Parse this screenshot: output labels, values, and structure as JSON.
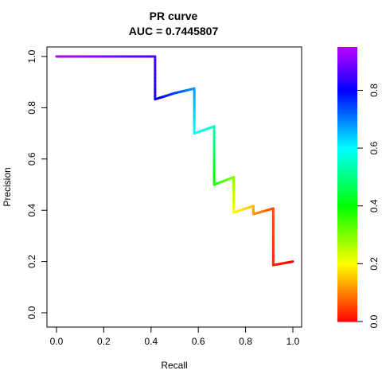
{
  "chart_data": {
    "type": "line",
    "title": "PR curve",
    "subtitle": "AUC = 0.7445807",
    "xlabel": "Recall",
    "ylabel": "Precision",
    "xlim": [
      0,
      1
    ],
    "ylim": [
      0,
      1
    ],
    "x_ticks": [
      "0.0",
      "0.2",
      "0.4",
      "0.6",
      "0.8",
      "1.0"
    ],
    "y_ticks": [
      "0.0",
      "0.2",
      "0.4",
      "0.6",
      "0.8",
      "1.0"
    ],
    "colorbar_ticks": [
      "0.0",
      "0.2",
      "0.4",
      "0.6",
      "0.8"
    ],
    "colorbar_range": [
      0,
      0.95
    ],
    "grid": false,
    "colormap": "rainbow (red at 0 through yellow, green, cyan, blue to magenta at top)",
    "points": [
      {
        "x": 0.0,
        "y": 1.0,
        "t": 0.95
      },
      {
        "x": 0.417,
        "y": 1.0,
        "t": 0.86
      },
      {
        "x": 0.417,
        "y": 0.833,
        "t": 0.82
      },
      {
        "x": 0.5,
        "y": 0.857,
        "t": 0.75
      },
      {
        "x": 0.583,
        "y": 0.875,
        "t": 0.68
      },
      {
        "x": 0.583,
        "y": 0.7,
        "t": 0.6
      },
      {
        "x": 0.667,
        "y": 0.727,
        "t": 0.55
      },
      {
        "x": 0.667,
        "y": 0.5,
        "t": 0.38
      },
      {
        "x": 0.75,
        "y": 0.529,
        "t": 0.3
      },
      {
        "x": 0.75,
        "y": 0.391,
        "t": 0.2
      },
      {
        "x": 0.833,
        "y": 0.417,
        "t": 0.15
      },
      {
        "x": 0.833,
        "y": 0.385,
        "t": 0.12
      },
      {
        "x": 0.917,
        "y": 0.407,
        "t": 0.06
      },
      {
        "x": 0.917,
        "y": 0.186,
        "t": 0.03
      },
      {
        "x": 1.0,
        "y": 0.2,
        "t": 0.0
      }
    ]
  }
}
